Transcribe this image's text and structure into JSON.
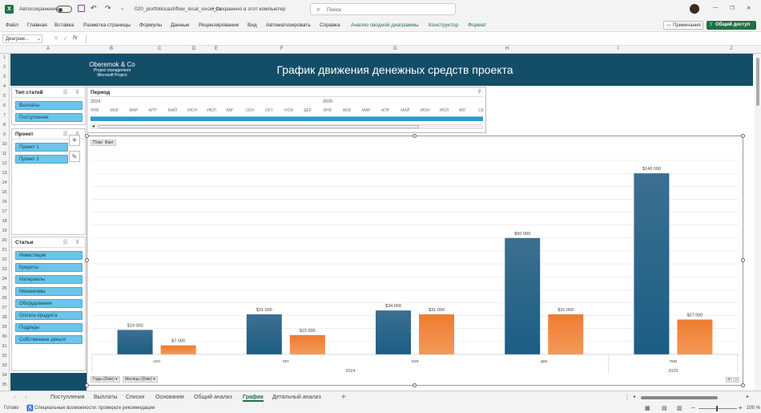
{
  "titlebar": {
    "app_icon": "excel-icon",
    "autosave_label": "Автосохранение",
    "filename": "020_portfoliocashflow_local_excel_ru",
    "save_status": "• Сохранено в этот компьютер",
    "search_placeholder": "Поиск"
  },
  "menu": {
    "items": [
      "Файл",
      "Главная",
      "Вставка",
      "Разметка страницы",
      "Формулы",
      "Данные",
      "Рецензирование",
      "Вид",
      "Автоматизировать",
      "Справка"
    ],
    "context_items": [
      "Анализ сводной диаграммы",
      "Конструктор",
      "Формат"
    ],
    "comments_label": "Примечания",
    "share_label": "Общий доступ"
  },
  "formula_bar": {
    "name_box": "Диаграм...",
    "fx_label": "fx",
    "value": ""
  },
  "columns": [
    "A",
    "B",
    "C",
    "D",
    "E",
    "F",
    "G",
    "H",
    "I",
    "J"
  ],
  "rows": [
    "1",
    "2",
    "3",
    "4",
    "5",
    "6",
    "7",
    "8",
    "9",
    "10",
    "11",
    "12",
    "13",
    "14",
    "15",
    "16",
    "17",
    "18",
    "19",
    "20",
    "21",
    "22",
    "23",
    "24",
    "25",
    "26",
    "27",
    "28",
    "29",
    "30",
    "31",
    "32",
    "33",
    "34",
    "35"
  ],
  "banner": {
    "logo_line1": "Oberemok & Co",
    "logo_line2": "Project management",
    "logo_line3": "Microsoft Project",
    "title": "График движения денежных средств проекта"
  },
  "slicers": [
    {
      "title": "Тип статей",
      "items": [
        "Выплаты",
        "Поступление"
      ]
    },
    {
      "title": "Проект",
      "items": [
        "Проект 1",
        "Проект 2"
      ]
    },
    {
      "title": "Статьи",
      "items": [
        "Инвестиции",
        "Кредиты",
        "Материалы",
        "Механизмы",
        "Оборудование",
        "Оплата продукта",
        "Подряды",
        "Собственные деньги"
      ]
    }
  ],
  "timeline": {
    "title": "Период",
    "years": [
      "2024",
      "2025"
    ],
    "months": [
      "ЯНВ",
      "ФЕВ",
      "МАР",
      "АПР",
      "МАЙ",
      "ИЮН",
      "ИЮЛ",
      "АВГ",
      "СЕН",
      "ОКТ",
      "НОЯ",
      "ДЕК",
      "ЯНВ",
      "ФЕВ",
      "МАР",
      "АПР",
      "МАЙ",
      "ИЮН",
      "ИЮЛ",
      "АВГ",
      "СЕ"
    ]
  },
  "chart": {
    "field_button": "План  Факт",
    "axis_buttons": [
      "Годы (Date)",
      "Месяцы (Date)"
    ]
  },
  "chart_data": {
    "type": "bar",
    "categories": [
      "сен",
      "окт",
      "ноя",
      "дек",
      "янв"
    ],
    "year_groups": [
      {
        "label": "2024",
        "span": 4
      },
      {
        "label": "2025",
        "span": 1
      }
    ],
    "series": [
      {
        "values": [
          19000,
          31000,
          34000,
          90000,
          140000
        ],
        "labels": [
          "$19 000",
          "$31 000",
          "$34 000",
          "$90 000",
          "$140 000"
        ],
        "color": "#1b5e82"
      },
      {
        "values": [
          7000,
          15000,
          31000,
          31000,
          27000
        ],
        "labels": [
          "$7 000",
          "$15 000",
          "$31 000",
          "$31 000",
          "$27 000"
        ],
        "color": "#ee7b30"
      }
    ],
    "ylim": [
      0,
      150000
    ],
    "grid": true
  },
  "sheet_tabs": [
    "Поступления",
    "Выплаты",
    "Списки",
    "Основания",
    "Общий анализ",
    "График",
    "Детальный анализ"
  ],
  "active_tab": "График",
  "status": {
    "ready": "Готово",
    "accessibility": "Специальные возможности: проверьте рекомендации",
    "zoom": "100 %"
  }
}
